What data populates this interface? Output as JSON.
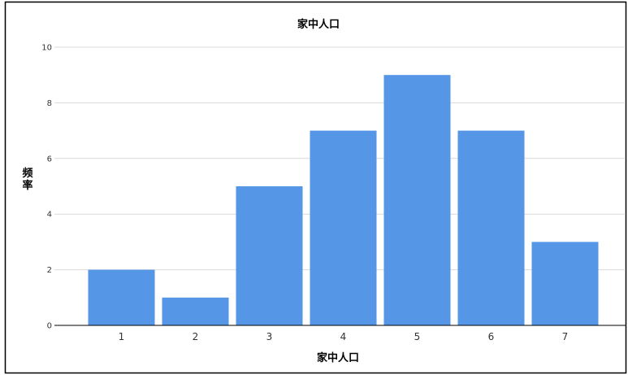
{
  "chart_data": {
    "type": "bar",
    "title": "家中人口",
    "xlabel": "家中人口",
    "ylabel": "频率",
    "categories": [
      "1",
      "2",
      "3",
      "4",
      "5",
      "6",
      "7"
    ],
    "values": [
      2,
      1,
      5,
      7,
      9,
      7,
      3
    ],
    "ylim": [
      0,
      10
    ],
    "yticks": [
      "0",
      "2",
      "4",
      "6",
      "8",
      "10"
    ],
    "grid": true,
    "legend": "none"
  },
  "colors": {
    "bar": "#5596E6",
    "grid": "#D9D9D9",
    "frame": "#000000"
  }
}
